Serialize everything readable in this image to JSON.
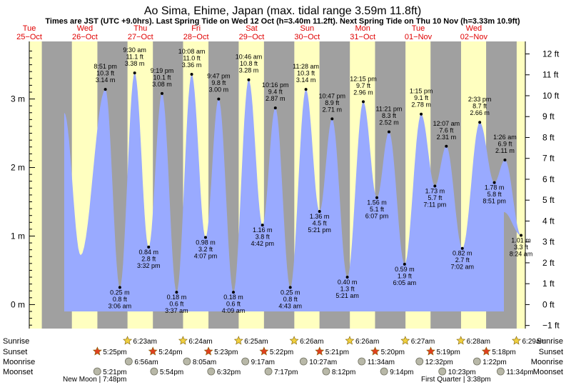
{
  "chart_data": {
    "type": "area",
    "title": "Ao Sima, Ehime, Japan (max. tidal range 3.59m 11.8ft)",
    "subtitle": "Times are JST (UTC +9.0hrs). Last Spring Tide on Wed 12 Oct (h=3.40m 11.2ft). Next Spring Tide on Thu 10 Nov (h=3.33m 10.9ft)",
    "days": [
      {
        "dow": "Tue",
        "date": "25−Oct"
      },
      {
        "dow": "Wed",
        "date": "26−Oct"
      },
      {
        "dow": "Thu",
        "date": "27−Oct"
      },
      {
        "dow": "Fri",
        "date": "28−Oct"
      },
      {
        "dow": "Sat",
        "date": "29−Oct"
      },
      {
        "dow": "Sun",
        "date": "30−Oct"
      },
      {
        "dow": "Mon",
        "date": "31−Oct"
      },
      {
        "dow": "Tue",
        "date": "01−Nov"
      },
      {
        "dow": "Wed",
        "date": "02−Nov"
      }
    ],
    "y_left_ticks": [
      "0 m",
      "1 m",
      "2 m",
      "3 m"
    ],
    "y_right_ticks": [
      "−1 ft",
      "0 ft",
      "1 ft",
      "2 ft",
      "3 ft",
      "4 ft",
      "5 ft",
      "6 ft",
      "7 ft",
      "8 ft",
      "9 ft",
      "10 ft",
      "11 ft",
      "12 ft"
    ],
    "ylim_m": [
      -0.35,
      3.84
    ],
    "tides": [
      {
        "day": 0.0,
        "time": "8:51 pm",
        "h": 3.14,
        "ft": "10.3 ft",
        "m": "3.14 m",
        "type": "high"
      },
      {
        "day": 1.0,
        "time": "3:06 am",
        "h": 0.25,
        "ft": "0.8 ft",
        "m": "0.25 m",
        "type": "low"
      },
      {
        "day": 1.0,
        "time": "9:30 am",
        "h": 3.38,
        "ft": "11.1 ft",
        "m": "3.38 m",
        "type": "high"
      },
      {
        "day": 1.0,
        "time": "3:32 pm",
        "h": 0.84,
        "ft": "2.8 ft",
        "m": "0.84 m",
        "type": "low"
      },
      {
        "day": 1.0,
        "time": "9:19 pm",
        "h": 3.08,
        "ft": "10.1 ft",
        "m": "3.08 m",
        "type": "high"
      },
      {
        "day": 2.0,
        "time": "3:37 am",
        "h": 0.18,
        "ft": "0.6 ft",
        "m": "0.18 m",
        "type": "low"
      },
      {
        "day": 2.0,
        "time": "10:08 am",
        "h": 3.36,
        "ft": "11.0 ft",
        "m": "3.36 m",
        "type": "high"
      },
      {
        "day": 2.0,
        "time": "4:07 pm",
        "h": 0.98,
        "ft": "3.2 ft",
        "m": "0.98 m",
        "type": "low"
      },
      {
        "day": 2.0,
        "time": "9:47 pm",
        "h": 3.0,
        "ft": "9.8 ft",
        "m": "3.00 m",
        "type": "high"
      },
      {
        "day": 3.0,
        "time": "4:09 am",
        "h": 0.18,
        "ft": "0.6 ft",
        "m": "0.18 m",
        "type": "low"
      },
      {
        "day": 3.0,
        "time": "10:46 am",
        "h": 3.28,
        "ft": "10.8 ft",
        "m": "3.28 m",
        "type": "high"
      },
      {
        "day": 3.0,
        "time": "4:42 pm",
        "h": 1.16,
        "ft": "3.8 ft",
        "m": "1.16 m",
        "type": "low"
      },
      {
        "day": 3.0,
        "time": "10:16 pm",
        "h": 2.87,
        "ft": "9.4 ft",
        "m": "2.87 m",
        "type": "high"
      },
      {
        "day": 4.0,
        "time": "4:43 am",
        "h": 0.25,
        "ft": "0.8 ft",
        "m": "0.25 m",
        "type": "low"
      },
      {
        "day": 4.0,
        "time": "11:28 am",
        "h": 3.14,
        "ft": "10.3 ft",
        "m": "3.14 m",
        "type": "high"
      },
      {
        "day": 4.0,
        "time": "5:21 pm",
        "h": 1.36,
        "ft": "4.5 ft",
        "m": "1.36 m",
        "type": "low"
      },
      {
        "day": 4.0,
        "time": "10:47 pm",
        "h": 2.71,
        "ft": "8.9 ft",
        "m": "2.71 m",
        "type": "high"
      },
      {
        "day": 5.0,
        "time": "5:21 am",
        "h": 0.4,
        "ft": "1.3 ft",
        "m": "0.40 m",
        "type": "low"
      },
      {
        "day": 5.0,
        "time": "12:15 pm",
        "h": 2.96,
        "ft": "9.7 ft",
        "m": "2.96 m",
        "type": "high"
      },
      {
        "day": 5.0,
        "time": "6:07 pm",
        "h": 1.56,
        "ft": "5.1 ft",
        "m": "1.56 m",
        "type": "low"
      },
      {
        "day": 5.0,
        "time": "11:21 pm",
        "h": 2.52,
        "ft": "8.3 ft",
        "m": "2.52 m",
        "type": "high"
      },
      {
        "day": 6.0,
        "time": "6:05 am",
        "h": 0.59,
        "ft": "1.9 ft",
        "m": "0.59 m",
        "type": "low"
      },
      {
        "day": 6.0,
        "time": "1:15 pm",
        "h": 2.78,
        "ft": "9.1 ft",
        "m": "2.78 m",
        "type": "high"
      },
      {
        "day": 6.0,
        "time": "7:11 pm",
        "h": 1.73,
        "ft": "5.7 ft",
        "m": "1.73 m",
        "type": "low"
      },
      {
        "day": 7.0,
        "time": "12:07 am",
        "h": 2.31,
        "ft": "7.6 ft",
        "m": "2.31 m",
        "type": "high"
      },
      {
        "day": 7.0,
        "time": "7:02 am",
        "h": 0.82,
        "ft": "2.7 ft",
        "m": "0.82 m",
        "type": "low"
      },
      {
        "day": 7.0,
        "time": "2:33 pm",
        "h": 2.66,
        "ft": "8.7 ft",
        "m": "2.66 m",
        "type": "high"
      },
      {
        "day": 7.0,
        "time": "8:51 pm",
        "h": 1.78,
        "ft": "5.8 ft",
        "m": "1.78 m",
        "type": "low"
      },
      {
        "day": 8.0,
        "time": "1:26 am",
        "h": 2.11,
        "ft": "6.9 ft",
        "m": "2.11 m",
        "type": "high"
      },
      {
        "day": 8.0,
        "time": "8:24 am",
        "h": 1.01,
        "ft": "3.3 ft",
        "m": "1.01 m",
        "type": "low"
      }
    ],
    "sun_moon_row_labels": [
      "Sunrise",
      "Sunset",
      "Moonrise",
      "Moonset"
    ],
    "sunrise": [
      "6:23am",
      "6:24am",
      "6:25am",
      "6:26am",
      "6:26am",
      "6:27am",
      "6:28am",
      "6:29am"
    ],
    "sunset": [
      "5:25pm",
      "5:24pm",
      "5:23pm",
      "5:22pm",
      "5:21pm",
      "5:20pm",
      "5:19pm",
      "5:18pm"
    ],
    "moonrise": [
      "6:56am",
      "8:05am",
      "9:17am",
      "10:27am",
      "11:34am",
      "12:32pm",
      "1:22pm"
    ],
    "moonset": [
      "5:21pm",
      "5:54pm",
      "6:32pm",
      "7:17pm",
      "8:12pm",
      "9:14pm",
      "10:23pm",
      "11:34pm"
    ],
    "moon_phases": [
      "New Moon | 7:48pm",
      "First Quarter | 3:38pm"
    ]
  },
  "colors": {
    "night": "#a0a0a0",
    "day": "#ffffc0",
    "water": "#99aaff",
    "day_label": "#e00000",
    "sun_star": "#f0d040",
    "sunset_star": "#e04020",
    "moon": "#b8b8a8"
  }
}
